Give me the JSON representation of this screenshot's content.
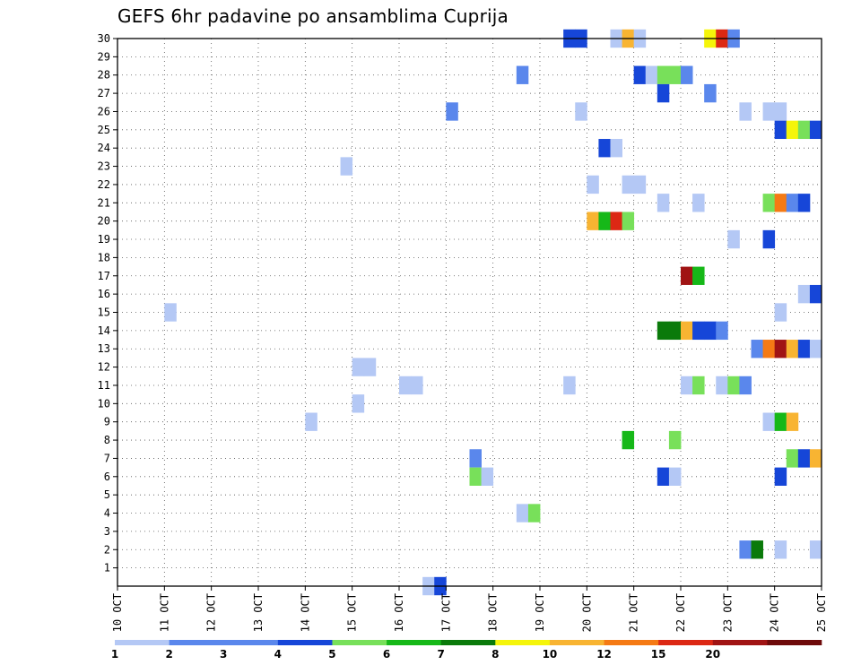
{
  "chart_data": {
    "type": "heatmap",
    "title": "GEFS 6hr padavine po ansamblima Cuprija",
    "xlabel": "",
    "ylabel": "",
    "x_ticks": [
      "10 OCT",
      "11 OCT",
      "12 OCT",
      "13 OCT",
      "14 OCT",
      "15 OCT",
      "16 OCT",
      "17 OCT",
      "18 OCT",
      "19 OCT",
      "20 OCT",
      "21 OCT",
      "22 OCT",
      "23 OCT",
      "24 OCT",
      "25 OCT"
    ],
    "xlim": [
      10,
      25
    ],
    "y_ticks": [
      1,
      2,
      3,
      4,
      5,
      6,
      7,
      8,
      9,
      10,
      11,
      12,
      13,
      14,
      15,
      16,
      17,
      18,
      19,
      20,
      21,
      22,
      23,
      24,
      25,
      26,
      27,
      28,
      29,
      30
    ],
    "ylim": [
      0,
      30
    ],
    "grid": true,
    "time_step_hours": 6,
    "color_bins": [
      {
        "min": 1,
        "max": 2,
        "color": "#b4c8f5"
      },
      {
        "min": 2,
        "max": 2.5,
        "color": "#5a87ec"
      },
      {
        "min": 2.5,
        "max": 3,
        "color": "#5a87ec"
      },
      {
        "min": 3,
        "max": 4,
        "color": "#1646d8"
      },
      {
        "min": 4,
        "max": 5,
        "color": "#78e05a"
      },
      {
        "min": 5,
        "max": 6,
        "color": "#16b818"
      },
      {
        "min": 6,
        "max": 7,
        "color": "#0a7a0a"
      },
      {
        "min": 7,
        "max": 8,
        "color": "#f5f50a"
      },
      {
        "min": 8,
        "max": 10,
        "color": "#f8b432"
      },
      {
        "min": 10,
        "max": 12,
        "color": "#f57a14"
      },
      {
        "min": 12,
        "max": 15,
        "color": "#dc2814"
      },
      {
        "min": 15,
        "max": 20,
        "color": "#a01414"
      },
      {
        "min": 20,
        "max": 25,
        "color": "#6e0a0a"
      }
    ],
    "legend_labels": [
      {
        "value": 1,
        "label": "1"
      },
      {
        "value": 2,
        "label": "2"
      },
      {
        "value": 3,
        "label": "3"
      },
      {
        "value": 4,
        "label": "4"
      },
      {
        "value": 5,
        "label": "5"
      },
      {
        "value": 6,
        "label": "6"
      },
      {
        "value": 7,
        "label": "7"
      },
      {
        "value": 8,
        "label": "8"
      },
      {
        "value": 10,
        "label": "10"
      },
      {
        "value": 12,
        "label": "12"
      },
      {
        "value": 15,
        "label": "15"
      },
      {
        "value": 20,
        "label": "20"
      }
    ],
    "cells": [
      {
        "member": 30,
        "day": 19.5,
        "bin": 3
      },
      {
        "member": 30,
        "day": 19.75,
        "bin": 3
      },
      {
        "member": 30,
        "day": 20.5,
        "bin": 0
      },
      {
        "member": 30,
        "day": 20.75,
        "bin": 8
      },
      {
        "member": 30,
        "day": 21.0,
        "bin": 0
      },
      {
        "member": 30,
        "day": 22.5,
        "bin": 7
      },
      {
        "member": 30,
        "day": 22.75,
        "bin": 10
      },
      {
        "member": 30,
        "day": 23.0,
        "bin": 1
      },
      {
        "member": 28,
        "day": 18.5,
        "bin": 1
      },
      {
        "member": 28,
        "day": 21.0,
        "bin": 3
      },
      {
        "member": 28,
        "day": 21.25,
        "bin": 0
      },
      {
        "member": 28,
        "day": 21.5,
        "bin": 4
      },
      {
        "member": 28,
        "day": 21.75,
        "bin": 4
      },
      {
        "member": 28,
        "day": 22.0,
        "bin": 1
      },
      {
        "member": 27,
        "day": 21.5,
        "bin": 3
      },
      {
        "member": 27,
        "day": 22.5,
        "bin": 1
      },
      {
        "member": 26,
        "day": 17.0,
        "bin": 1
      },
      {
        "member": 26,
        "day": 19.75,
        "bin": 0
      },
      {
        "member": 26,
        "day": 23.25,
        "bin": 0
      },
      {
        "member": 26,
        "day": 23.75,
        "bin": 0
      },
      {
        "member": 26,
        "day": 24.0,
        "bin": 0
      },
      {
        "member": 25,
        "day": 24.0,
        "bin": 3
      },
      {
        "member": 25,
        "day": 24.25,
        "bin": 7
      },
      {
        "member": 25,
        "day": 24.5,
        "bin": 4
      },
      {
        "member": 25,
        "day": 24.75,
        "bin": 3
      },
      {
        "member": 24,
        "day": 20.25,
        "bin": 3
      },
      {
        "member": 24,
        "day": 20.5,
        "bin": 0
      },
      {
        "member": 23,
        "day": 14.75,
        "bin": 0
      },
      {
        "member": 22,
        "day": 20.0,
        "bin": 0
      },
      {
        "member": 22,
        "day": 20.75,
        "bin": 0
      },
      {
        "member": 22,
        "day": 21.0,
        "bin": 0
      },
      {
        "member": 21,
        "day": 21.5,
        "bin": 0
      },
      {
        "member": 21,
        "day": 22.25,
        "bin": 0
      },
      {
        "member": 21,
        "day": 23.75,
        "bin": 4
      },
      {
        "member": 21,
        "day": 24.0,
        "bin": 9
      },
      {
        "member": 21,
        "day": 24.25,
        "bin": 1
      },
      {
        "member": 21,
        "day": 24.5,
        "bin": 3
      },
      {
        "member": 20,
        "day": 20.0,
        "bin": 8
      },
      {
        "member": 20,
        "day": 20.25,
        "bin": 5
      },
      {
        "member": 20,
        "day": 20.5,
        "bin": 10
      },
      {
        "member": 20,
        "day": 20.75,
        "bin": 4
      },
      {
        "member": 19,
        "day": 23.0,
        "bin": 0
      },
      {
        "member": 19,
        "day": 23.75,
        "bin": 3
      },
      {
        "member": 17,
        "day": 22.0,
        "bin": 11
      },
      {
        "member": 17,
        "day": 22.25,
        "bin": 5
      },
      {
        "member": 16,
        "day": 24.5,
        "bin": 0
      },
      {
        "member": 16,
        "day": 24.75,
        "bin": 3
      },
      {
        "member": 15,
        "day": 11.0,
        "bin": 0
      },
      {
        "member": 15,
        "day": 24.0,
        "bin": 0
      },
      {
        "member": 14,
        "day": 21.5,
        "bin": 6
      },
      {
        "member": 14,
        "day": 21.75,
        "bin": 6
      },
      {
        "member": 14,
        "day": 22.0,
        "bin": 8
      },
      {
        "member": 14,
        "day": 22.25,
        "bin": 3
      },
      {
        "member": 14,
        "day": 22.5,
        "bin": 3
      },
      {
        "member": 14,
        "day": 22.75,
        "bin": 1
      },
      {
        "member": 13,
        "day": 23.5,
        "bin": 1
      },
      {
        "member": 13,
        "day": 23.75,
        "bin": 9
      },
      {
        "member": 13,
        "day": 24.0,
        "bin": 11
      },
      {
        "member": 13,
        "day": 24.25,
        "bin": 8
      },
      {
        "member": 13,
        "day": 24.5,
        "bin": 3
      },
      {
        "member": 13,
        "day": 24.75,
        "bin": 0
      },
      {
        "member": 12,
        "day": 15.0,
        "bin": 0
      },
      {
        "member": 12,
        "day": 15.25,
        "bin": 0
      },
      {
        "member": 11,
        "day": 16.0,
        "bin": 0
      },
      {
        "member": 11,
        "day": 16.25,
        "bin": 0
      },
      {
        "member": 11,
        "day": 19.5,
        "bin": 0
      },
      {
        "member": 11,
        "day": 22.0,
        "bin": 0
      },
      {
        "member": 11,
        "day": 22.25,
        "bin": 4
      },
      {
        "member": 11,
        "day": 22.75,
        "bin": 0
      },
      {
        "member": 11,
        "day": 23.0,
        "bin": 4
      },
      {
        "member": 11,
        "day": 23.25,
        "bin": 1
      },
      {
        "member": 10,
        "day": 15.0,
        "bin": 0
      },
      {
        "member": 9,
        "day": 14.0,
        "bin": 0
      },
      {
        "member": 9,
        "day": 23.75,
        "bin": 0
      },
      {
        "member": 9,
        "day": 24.0,
        "bin": 5
      },
      {
        "member": 9,
        "day": 24.25,
        "bin": 8
      },
      {
        "member": 8,
        "day": 20.75,
        "bin": 5
      },
      {
        "member": 8,
        "day": 21.75,
        "bin": 4
      },
      {
        "member": 7,
        "day": 17.5,
        "bin": 1
      },
      {
        "member": 7,
        "day": 24.25,
        "bin": 4
      },
      {
        "member": 7,
        "day": 24.5,
        "bin": 3
      },
      {
        "member": 7,
        "day": 24.75,
        "bin": 8
      },
      {
        "member": 6,
        "day": 17.5,
        "bin": 4
      },
      {
        "member": 6,
        "day": 17.75,
        "bin": 0
      },
      {
        "member": 6,
        "day": 21.5,
        "bin": 3
      },
      {
        "member": 6,
        "day": 21.75,
        "bin": 0
      },
      {
        "member": 6,
        "day": 24.0,
        "bin": 3
      },
      {
        "member": 4,
        "day": 18.5,
        "bin": 0
      },
      {
        "member": 4,
        "day": 18.75,
        "bin": 4
      },
      {
        "member": 2,
        "day": 23.25,
        "bin": 1
      },
      {
        "member": 2,
        "day": 23.5,
        "bin": 6
      },
      {
        "member": 2,
        "day": 24.0,
        "bin": 0
      },
      {
        "member": 2,
        "day": 24.75,
        "bin": 0
      },
      {
        "member": 0,
        "day": 16.5,
        "bin": 0
      },
      {
        "member": 0,
        "day": 16.75,
        "bin": 3
      }
    ]
  }
}
